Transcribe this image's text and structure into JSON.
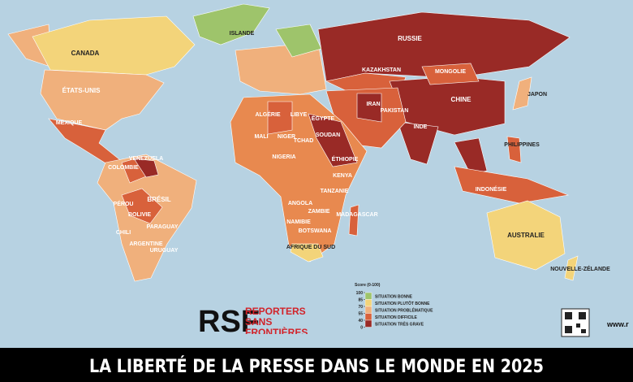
{
  "header": {
    "title": "LA LIBERTÉ DE LA PRESSE DANS LE MONDE EN 2025",
    "logo": "RSF",
    "organization": "REPORTERS SANS FRONTIÈRES",
    "url": "www.r"
  },
  "legend": {
    "score_label": "Score (0-100)",
    "ticks": [
      100,
      85,
      70,
      55,
      40,
      0
    ],
    "items": [
      {
        "label": "SITUATION BONNE",
        "color": "#9ec46b"
      },
      {
        "label": "SITUATION PLUTÔT BONNE",
        "color": "#f3d47a"
      },
      {
        "label": "SITUATION PROBLÉMATIQUE",
        "color": "#f0b07c"
      },
      {
        "label": "SITUATION DIFFICILE",
        "color": "#d8613b"
      },
      {
        "label": "SITUATION TRÈS GRAVE",
        "color": "#992a26"
      }
    ]
  },
  "countries": [
    "CANADA",
    "ÉTATS-UNIS",
    "MEXIQUE",
    "BRÉSIL",
    "PÉROU",
    "BOLIVIE",
    "ARGENTINE",
    "CHILI",
    "PARAGUAY",
    "URUGUAY",
    "COLOMBIE",
    "VENEZUELA",
    "RUSSIE",
    "CHINE",
    "INDE",
    "MONGOLIE",
    "KAZAKHSTAN",
    "IRAN",
    "ALGÉRIE",
    "LIBYE",
    "ÉGYPTE",
    "MALI",
    "NIGER",
    "TCHAD",
    "SOUDAN",
    "NIGERIA",
    "ÉTHIOPIE",
    "ANGOLA",
    "ZAMBIE",
    "NAMIBIE",
    "TANZANIE",
    "MADAGASCAR",
    "AUSTRALIE",
    "INDONÉSIE",
    "PHILIPPINES",
    "JAPON",
    "NOUVELLE-ZÉLANDE",
    "ISLANDE",
    "PAKISTAN",
    "KENYA",
    "BOTSWANA",
    "AFRIQUE DU SUD"
  ]
}
